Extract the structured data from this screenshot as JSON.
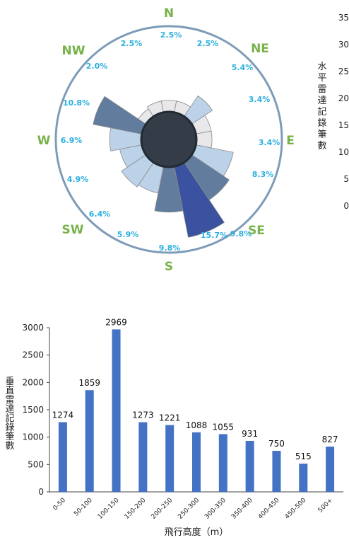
{
  "chart_data": [
    {
      "type": "polar-bar",
      "directions": [
        "N",
        "NE",
        "E",
        "SE",
        "S",
        "SW",
        "W",
        "NW"
      ],
      "sectors": [
        "N",
        "NNE",
        "NE",
        "ENE",
        "E",
        "ESE",
        "SE",
        "SSE",
        "S",
        "SSW",
        "SW",
        "WSW",
        "W",
        "WNW",
        "NW",
        "NNW"
      ],
      "values": [
        2.5,
        2.5,
        5.4,
        3.4,
        3.4,
        8.3,
        9.8,
        15.7,
        9.8,
        5.9,
        6.4,
        4.9,
        6.9,
        10.8,
        2.0,
        2.5
      ],
      "labels": [
        "2.5%",
        "2.5%",
        "5.4%",
        "3.4%",
        "3.4%",
        "8.3%",
        "9.8%",
        "15.7%",
        "9.8%",
        "5.9%",
        "6.4%",
        "4.9%",
        "6.9%",
        "10.8%",
        "2.0%",
        "2.5%"
      ],
      "colors": {
        "ring": "#7e9cb8",
        "bar_light": "#bcd2e8",
        "bar_pale": "#e8e8ea",
        "bar_mid": "#627c9e",
        "bar_dark": "#3a52a0",
        "center": "#333c47"
      }
    },
    {
      "type": "bar",
      "partial": true,
      "ylabel": "水平雷達記錄筆數",
      "ytick_labels": [
        "35",
        "30",
        "25",
        "20",
        "15",
        "10",
        "5",
        "0"
      ]
    },
    {
      "type": "bar",
      "categories": [
        "0-50",
        "50-100",
        "100-150",
        "150-200",
        "200-250",
        "250-300",
        "300-350",
        "350-400",
        "400-450",
        "450-500",
        "500+"
      ],
      "values": [
        1274,
        1859,
        2969,
        1273,
        1221,
        1088,
        1055,
        931,
        750,
        515,
        827
      ],
      "ylabel": "垂直雷達記錄筆數",
      "xlabel": "飛行高度（m）",
      "ylim": [
        0,
        3000
      ],
      "yticks": [
        0,
        500,
        1000,
        1500,
        2000,
        2500,
        3000
      ],
      "bar_color": "#4472c4"
    }
  ]
}
